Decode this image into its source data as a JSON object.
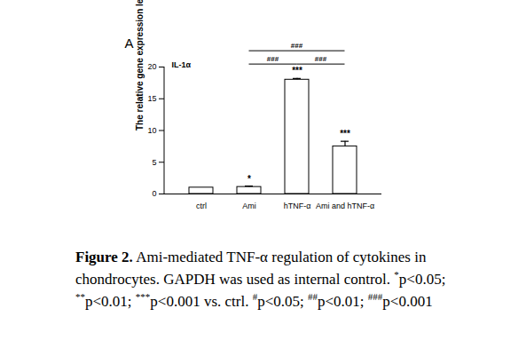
{
  "chart_data": {
    "type": "bar",
    "panel_label": "A",
    "title": "IL-1α",
    "y_label": "The relative gene expression levels",
    "categories": [
      "ctrl",
      "Ami",
      "hTNF-α",
      "Ami and hTNF-α"
    ],
    "values": [
      1.0,
      1.1,
      18.0,
      7.5
    ],
    "errors": [
      0,
      0.15,
      0.2,
      0.8
    ],
    "significance": [
      null,
      "*",
      "***",
      "***"
    ],
    "comparisons": [
      {
        "from": "Ami",
        "to": "hTNF-α",
        "y": 20.4,
        "label": "###"
      },
      {
        "from": "hTNF-α",
        "to": "Ami and hTNF-α",
        "y": 20.4,
        "label": "###"
      },
      {
        "from": "Ami",
        "to": "Ami and hTNF-α",
        "y": 22.5,
        "label": "###"
      }
    ],
    "color": "#ffffff",
    "ylim": [
      0,
      20
    ],
    "yticks": [
      0,
      5,
      10,
      15,
      20
    ],
    "grid": false,
    "caption_title": "Figure 2.",
    "caption": "Ami-mediated TNF-α regulation of cytokines in chondrocytes. GAPDH was used as internal control. *p<0.05; **p<0.01; ***p<0.001 vs. ctrl. #p<0.05; ##p<0.01; ###p<0.001"
  }
}
